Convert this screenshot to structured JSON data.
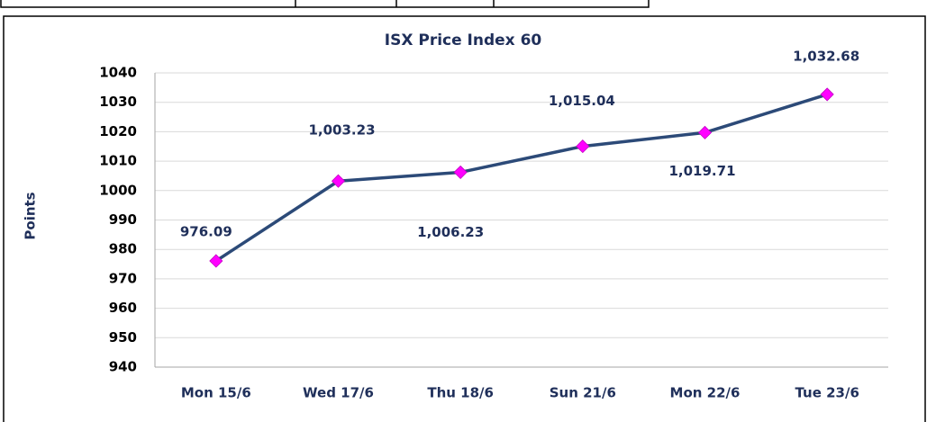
{
  "chart_data": {
    "type": "line",
    "title": "ISX Price Index 60",
    "y_label": "Points",
    "categories": [
      "Mon 15/6",
      "Wed 17/6",
      "Thu 18/6",
      "Sun  21/6",
      "Mon  22/6",
      "Tue 23/6"
    ],
    "series": [
      {
        "name": "ISX Price Index 60",
        "color": "#2c4a78",
        "values": [
          976.09,
          1003.23,
          1006.23,
          1015.04,
          1019.71,
          1032.68
        ],
        "value_labels": [
          "976.09",
          "1,003.23",
          "1,006.23",
          "1,015.04",
          "1,019.71",
          "1,032.68"
        ]
      }
    ],
    "marker_color": "#ff00ff",
    "ylim": [
      940,
      1040
    ],
    "yticks": [
      940,
      950,
      960,
      970,
      980,
      990,
      1000,
      1010,
      1020,
      1030,
      1040
    ],
    "grid": true
  }
}
